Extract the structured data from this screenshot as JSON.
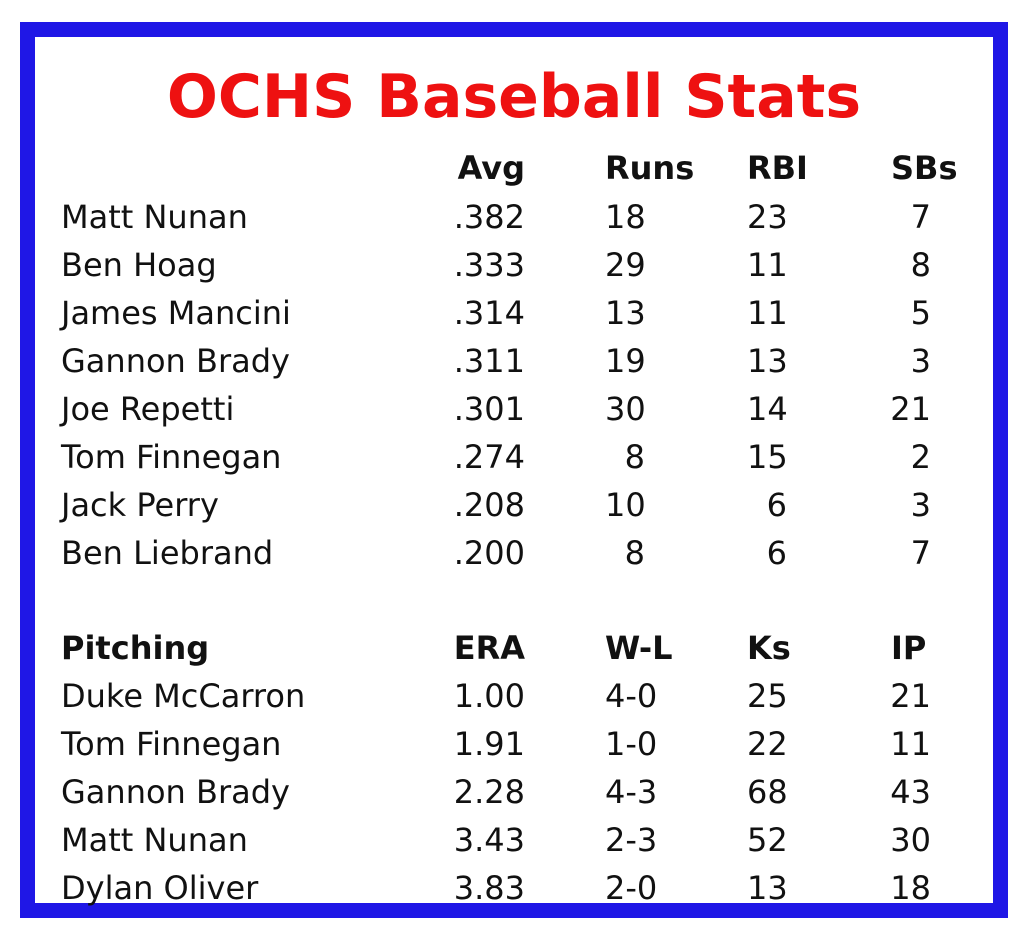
{
  "title": "OCHS Baseball Stats",
  "colors": {
    "border": "#1f17e6",
    "title": "#ee1111",
    "text": "#111111"
  },
  "batting": {
    "headers": {
      "name": "",
      "avg": "Avg",
      "runs": "Runs",
      "rbi": "RBI",
      "sbs": "SBs"
    },
    "rows": [
      {
        "name": "Matt Nunan",
        "avg": ".382",
        "runs": "18",
        "rbi": "23",
        "sbs": "7"
      },
      {
        "name": "Ben Hoag",
        "avg": ".333",
        "runs": "29",
        "rbi": "11",
        "sbs": "8"
      },
      {
        "name": "James Mancini",
        "avg": ".314",
        "runs": "13",
        "rbi": "11",
        "sbs": "5"
      },
      {
        "name": "Gannon Brady",
        "avg": ".311",
        "runs": "19",
        "rbi": "13",
        "sbs": "3"
      },
      {
        "name": "Joe Repetti",
        "avg": ".301",
        "runs": "30",
        "rbi": "14",
        "sbs": "21"
      },
      {
        "name": "Tom Finnegan",
        "avg": ".274",
        "runs": "8",
        "rbi": "15",
        "sbs": "2"
      },
      {
        "name": "Jack Perry",
        "avg": ".208",
        "runs": "10",
        "rbi": "6",
        "sbs": "3"
      },
      {
        "name": "Ben Liebrand",
        "avg": ".200",
        "runs": "8",
        "rbi": "6",
        "sbs": "7"
      }
    ]
  },
  "pitching": {
    "headers": {
      "name": "Pitching",
      "era": "ERA",
      "wl": "W-L",
      "ks": "Ks",
      "ip": "IP"
    },
    "rows": [
      {
        "name": "Duke McCarron",
        "era": "1.00",
        "wl": "4-0",
        "ks": "25",
        "ip": "21"
      },
      {
        "name": "Tom Finnegan",
        "era": "1.91",
        "wl": "1-0",
        "ks": "22",
        "ip": "11"
      },
      {
        "name": "Gannon Brady",
        "era": "2.28",
        "wl": "4-3",
        "ks": "68",
        "ip": "43"
      },
      {
        "name": "Matt Nunan",
        "era": "3.43",
        "wl": "2-3",
        "ks": "52",
        "ip": "30"
      },
      {
        "name": "Dylan Oliver",
        "era": "3.83",
        "wl": "2-0",
        "ks": "13",
        "ip": "18"
      }
    ]
  }
}
